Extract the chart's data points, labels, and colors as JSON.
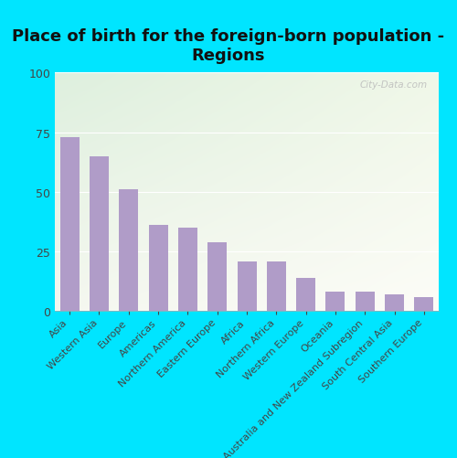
{
  "title": "Place of birth for the foreign-born population -\nRegions",
  "categories": [
    "Asia",
    "Western Asia",
    "Europe",
    "Americas",
    "Northern America",
    "Eastern Europe",
    "Africa",
    "Northern Africa",
    "Western Europe",
    "Oceania",
    "Australia and New Zealand Subregion",
    "South Central Asia",
    "Southern Europe"
  ],
  "values": [
    73,
    65,
    51,
    36,
    35,
    29,
    21,
    21,
    14,
    8,
    8,
    7,
    6
  ],
  "bar_color": "#b09cc8",
  "background_color": "#00e5ff",
  "plot_bg_top_left": "#ddeedd",
  "plot_bg_top_right": "#f0f5e8",
  "plot_bg_bottom": "#f8f8f0",
  "ylim": [
    0,
    100
  ],
  "yticks": [
    0,
    25,
    50,
    75,
    100
  ],
  "title_fontsize": 13,
  "tick_fontsize": 9,
  "label_fontsize": 8,
  "watermark": "City-Data.com",
  "grid_color": "#dddddd",
  "bar_width": 0.65
}
